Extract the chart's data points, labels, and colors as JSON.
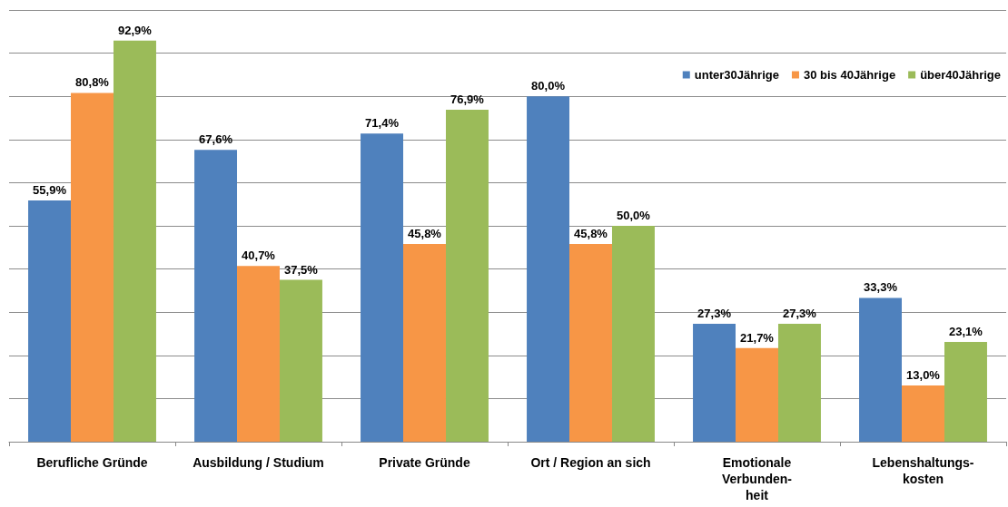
{
  "chart_data": {
    "type": "bar",
    "categories": [
      "Berufliche Gründe",
      "Ausbildung / Studium",
      "Private Gründe",
      "Ort / Region an sich",
      "Emotionale\nVerbunden-\nheit",
      "Lebenshaltungs-\nkosten"
    ],
    "series": [
      {
        "name": "unter30Jährige",
        "color": "#4f81bd",
        "values": [
          55.9,
          67.6,
          71.4,
          80.0,
          27.3,
          33.3
        ],
        "value_labels": [
          "55,9%",
          "67,6%",
          "71,4%",
          "80,0%",
          "27,3%",
          "33,3%"
        ]
      },
      {
        "name": "30 bis 40Jährige",
        "color": "#f79646",
        "values": [
          80.8,
          40.7,
          45.8,
          45.8,
          21.7,
          13.0
        ],
        "value_labels": [
          "80,8%",
          "40,7%",
          "45,8%",
          "45,8%",
          "21,7%",
          "13,0%"
        ]
      },
      {
        "name": "über40Jährige",
        "color": "#9bbb59",
        "values": [
          92.9,
          37.5,
          76.9,
          50.0,
          27.3,
          23.1
        ],
        "value_labels": [
          "92,9%",
          "37,5%",
          "76,9%",
          "50,0%",
          "27,3%",
          "23,1%"
        ]
      }
    ],
    "ylim": [
      0,
      100
    ],
    "yticks": [
      {
        "value": 0,
        "label": null
      },
      {
        "value": 10,
        "label": null
      },
      {
        "value": 20,
        "label": null
      },
      {
        "value": 30,
        "label": null
      },
      {
        "value": 40,
        "label": null
      },
      {
        "value": 50,
        "label": null
      },
      {
        "value": 60,
        "label": null
      },
      {
        "value": 70,
        "label": null
      },
      {
        "value": 80,
        "label": null
      },
      {
        "value": 90,
        "label": null
      },
      {
        "value": 100,
        "label": null
      }
    ],
    "grid": true,
    "legend": "top right",
    "tick_labels": "x"
  }
}
